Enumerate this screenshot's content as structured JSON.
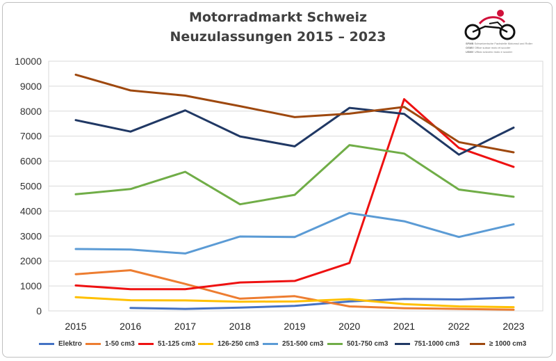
{
  "title_line1": "Motorradmarkt Schweiz",
  "title_line2": "Neuzulassungen 2015 – 2023",
  "logo": {
    "abbr1": "SFMB",
    "abbr2": "OSMV",
    "abbr3": "USMV",
    "text1": "Schweizerische Fachstelle Motorrad und Roller",
    "text2": "Office suisse moto et scooter",
    "text3": "Ufficio svizzero moto e scooter"
  },
  "chart_data": {
    "type": "line",
    "x": [
      "2015",
      "2016",
      "2017",
      "2018",
      "2019",
      "2020",
      "2021",
      "2022",
      "2023"
    ],
    "ylim": [
      0,
      10000
    ],
    "yticks": [
      "0",
      "1000",
      "2000",
      "3000",
      "4000",
      "5000",
      "6000",
      "7000",
      "8000",
      "9000",
      "10000"
    ],
    "grid": true,
    "legend_position": "bottom",
    "series": [
      {
        "name": "Elektro",
        "color": "#4472c4",
        "values": [
          null,
          120,
          80,
          130,
          200,
          380,
          480,
          460,
          540
        ]
      },
      {
        "name": "1-50 cm3",
        "color": "#ed7d31",
        "values": [
          1470,
          1630,
          1080,
          490,
          590,
          180,
          110,
          80,
          50
        ]
      },
      {
        "name": "51-125 cm3",
        "color": "#ee1111",
        "values": [
          1020,
          870,
          870,
          1140,
          1200,
          1920,
          8480,
          6530,
          5770
        ]
      },
      {
        "name": "126-250 cm3",
        "color": "#ffc000",
        "values": [
          550,
          430,
          420,
          370,
          380,
          470,
          270,
          180,
          150
        ]
      },
      {
        "name": "251-500 cm3",
        "color": "#5b9bd5",
        "values": [
          2480,
          2460,
          2300,
          2980,
          2960,
          3920,
          3590,
          2960,
          3470
        ]
      },
      {
        "name": "501-750 cm3",
        "color": "#70ad47",
        "values": [
          4670,
          4880,
          5570,
          4270,
          4650,
          6640,
          6300,
          4860,
          4570
        ]
      },
      {
        "name": "751-1000 cm3",
        "color": "#203864",
        "values": [
          7640,
          7180,
          8030,
          6990,
          6590,
          8130,
          7890,
          6260,
          7340
        ]
      },
      {
        "name": "≥ 1000 cm3",
        "color": "#9e480e",
        "values": [
          9460,
          8830,
          8620,
          8200,
          7760,
          7900,
          8170,
          6760,
          6350
        ]
      }
    ]
  }
}
